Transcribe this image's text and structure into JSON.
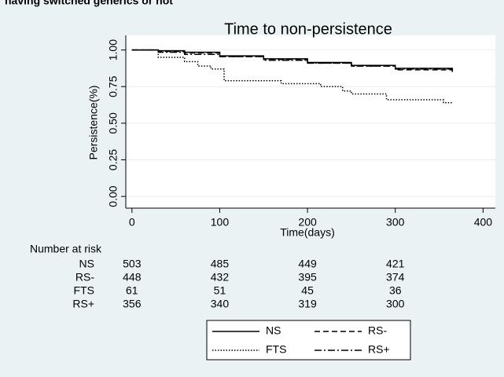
{
  "chart_data": {
    "type": "step",
    "caption": "having switched generics or not",
    "title": "Time to non-persistence",
    "x_label": "Time(days)",
    "y_label": "Persistence(%)",
    "xlim": [
      -7,
      414
    ],
    "ylim": [
      -0.08,
      1.1
    ],
    "xticks": [
      0,
      100,
      200,
      300,
      400
    ],
    "yticks": [
      {
        "value": 0,
        "label": "0.00"
      },
      0.25,
      {
        "value": 0.5,
        "label": "0.50"
      },
      0.75,
      {
        "value": 1,
        "label": "1.00"
      }
    ],
    "grid": true,
    "series": [
      {
        "name": "NS",
        "color": "#000000",
        "dash": "none",
        "x": [
          0,
          30,
          60,
          100,
          150,
          200,
          250,
          300,
          365
        ],
        "values": [
          1,
          0.995,
          0.985,
          0.96,
          0.94,
          0.915,
          0.895,
          0.875,
          0.855
        ]
      },
      {
        "name": "RS-",
        "color": "#000000",
        "dash": "7 4",
        "x": [
          0,
          30,
          60,
          100,
          150,
          200,
          250,
          300,
          365
        ],
        "values": [
          1,
          0.99,
          0.98,
          0.955,
          0.935,
          0.91,
          0.89,
          0.865,
          0.85
        ]
      },
      {
        "name": "FTS",
        "color": "#000000",
        "dash": "1.5 2",
        "x": [
          0,
          30,
          60,
          75,
          90,
          105,
          170,
          215,
          240,
          250,
          290,
          355,
          365
        ],
        "values": [
          1,
          0.95,
          0.92,
          0.89,
          0.87,
          0.79,
          0.77,
          0.75,
          0.72,
          0.7,
          0.66,
          0.64,
          0.64
        ]
      },
      {
        "name": "RS+",
        "color": "#000000",
        "dash": "9 3 2 3",
        "x": [
          0,
          30,
          60,
          100,
          150,
          200,
          250,
          300,
          365
        ],
        "values": [
          1,
          0.985,
          0.97,
          0.955,
          0.93,
          0.91,
          0.89,
          0.87,
          0.85
        ]
      }
    ],
    "risk_table": {
      "title": "Number at risk",
      "rows": [
        {
          "label": "NS",
          "values": [
            503,
            485,
            449,
            421
          ]
        },
        {
          "label": "RS-",
          "values": [
            448,
            432,
            395,
            374
          ]
        },
        {
          "label": "FTS",
          "values": [
            61,
            51,
            45,
            36
          ]
        },
        {
          "label": "RS+",
          "values": [
            356,
            340,
            319,
            300
          ]
        }
      ]
    }
  }
}
